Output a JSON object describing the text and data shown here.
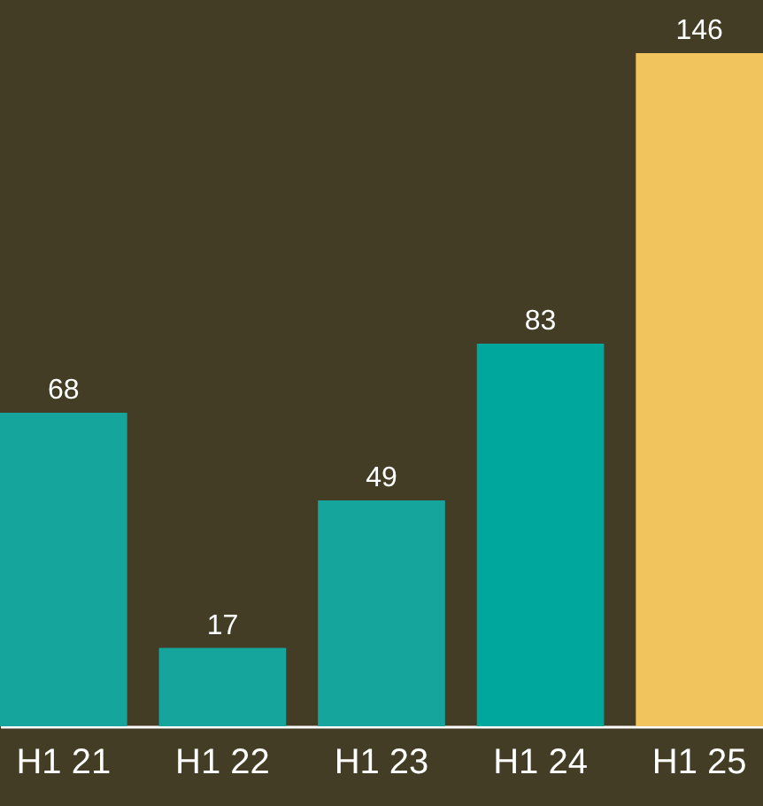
{
  "chart_data": {
    "type": "bar",
    "categories": [
      "H1 21",
      "H1 22",
      "H1 23",
      "H1 24",
      "H1 25"
    ],
    "values": [
      68,
      17,
      49,
      83,
      146
    ],
    "colors": [
      "#15a59c",
      "#15a59c",
      "#15a59c",
      "#00a79d",
      "#f2c45e"
    ],
    "data_labels": true
  }
}
